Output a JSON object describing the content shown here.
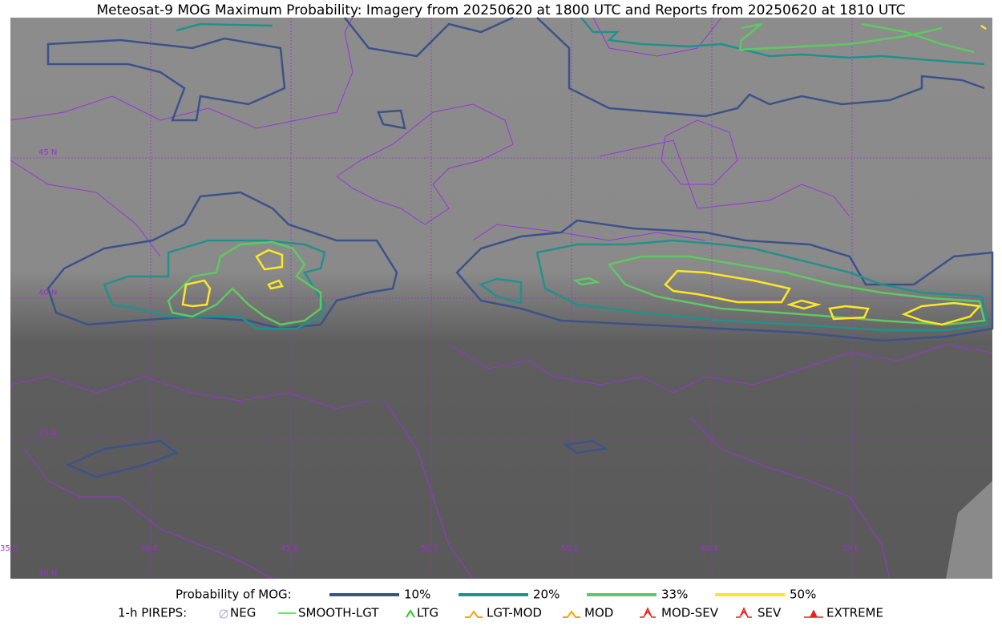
{
  "header": {
    "title": "Meteosat-9 MOG Maximum Probability: Imagery from 20250620 at 1800 UTC and Reports from 20250620 at 1810 UTC"
  },
  "map": {
    "lat_labels": [
      "45 N",
      "40 N",
      "35 N",
      "30 N"
    ],
    "lon_labels": [
      "35 E",
      "40 E",
      "45 E",
      "50 E",
      "55 E",
      "60 E",
      "65 E"
    ]
  },
  "legend": {
    "probability": {
      "label": "Probability of MOG:",
      "items": [
        {
          "label": "10%",
          "color": "#3b528b"
        },
        {
          "label": "20%",
          "color": "#21918c"
        },
        {
          "label": "33%",
          "color": "#5ec962"
        },
        {
          "label": "50%",
          "color": "#fde725"
        }
      ]
    },
    "pireps": {
      "label": "1-h PIREPS:",
      "items": [
        {
          "label": "NEG",
          "color": "#b0a8f0"
        },
        {
          "label": "SMOOTH-LGT",
          "color": "#33dd33"
        },
        {
          "label": "LTG",
          "color": "#22cc22"
        },
        {
          "label": "LGT-MOD",
          "color": "#f5a800"
        },
        {
          "label": "MOD",
          "color": "#f5a800"
        },
        {
          "label": "MOD-SEV",
          "color": "#e82020"
        },
        {
          "label": "SEV",
          "color": "#e82020"
        },
        {
          "label": "EXTREME",
          "color": "#e82020"
        }
      ]
    }
  }
}
